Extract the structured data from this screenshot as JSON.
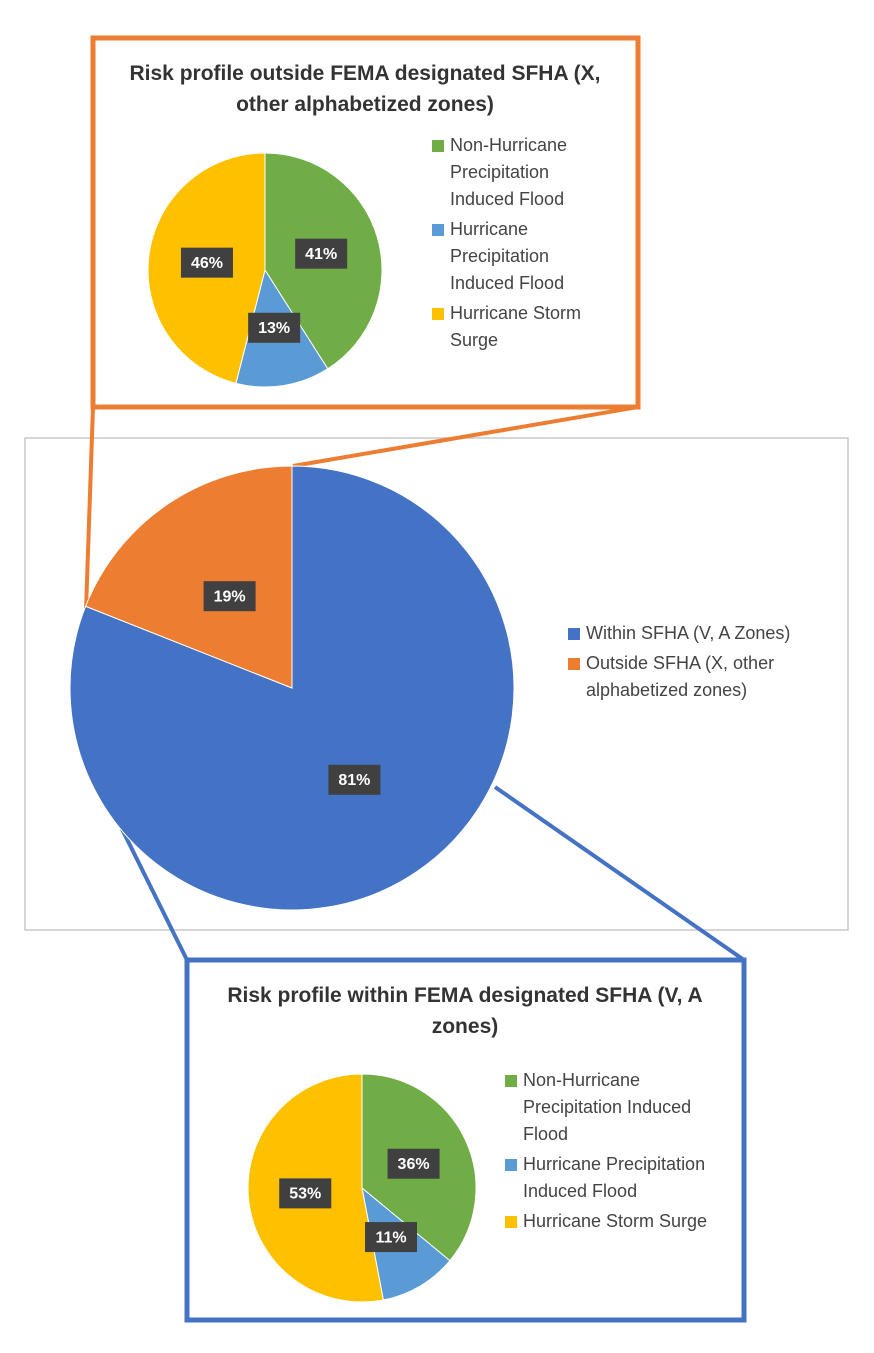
{
  "chart_data": [
    {
      "type": "pie",
      "title": "Risk profile outside FEMA designated SFHA (X, other alphabetized zones)",
      "categories": [
        "Non-Hurricane Precipitation Induced Flood",
        "Hurricane Precipitation Induced Flood",
        "Hurricane Storm Surge"
      ],
      "values": [
        41,
        13,
        46
      ],
      "value_labels": [
        "41%",
        "13%",
        "46%"
      ],
      "colors": [
        "#70ad47",
        "#5b9bd5",
        "#ffc000"
      ]
    },
    {
      "type": "pie",
      "categories": [
        "Within SFHA (V, A Zones)",
        "Outside SFHA (X, other alphabetized zones)"
      ],
      "values": [
        81,
        19
      ],
      "value_labels": [
        "81%",
        "19%"
      ],
      "colors": [
        "#4472c4",
        "#ed7d31"
      ]
    },
    {
      "type": "pie",
      "title": "Risk profile within FEMA designated SFHA (V, A zones)",
      "categories": [
        "Non-Hurricane Precipitation Induced Flood",
        "Hurricane Precipitation Induced Flood",
        "Hurricane Storm Surge"
      ],
      "values": [
        36,
        11,
        53
      ],
      "value_labels": [
        "36%",
        "11%",
        "53%"
      ],
      "colors": [
        "#70ad47",
        "#5b9bd5",
        "#ffc000"
      ]
    }
  ]
}
